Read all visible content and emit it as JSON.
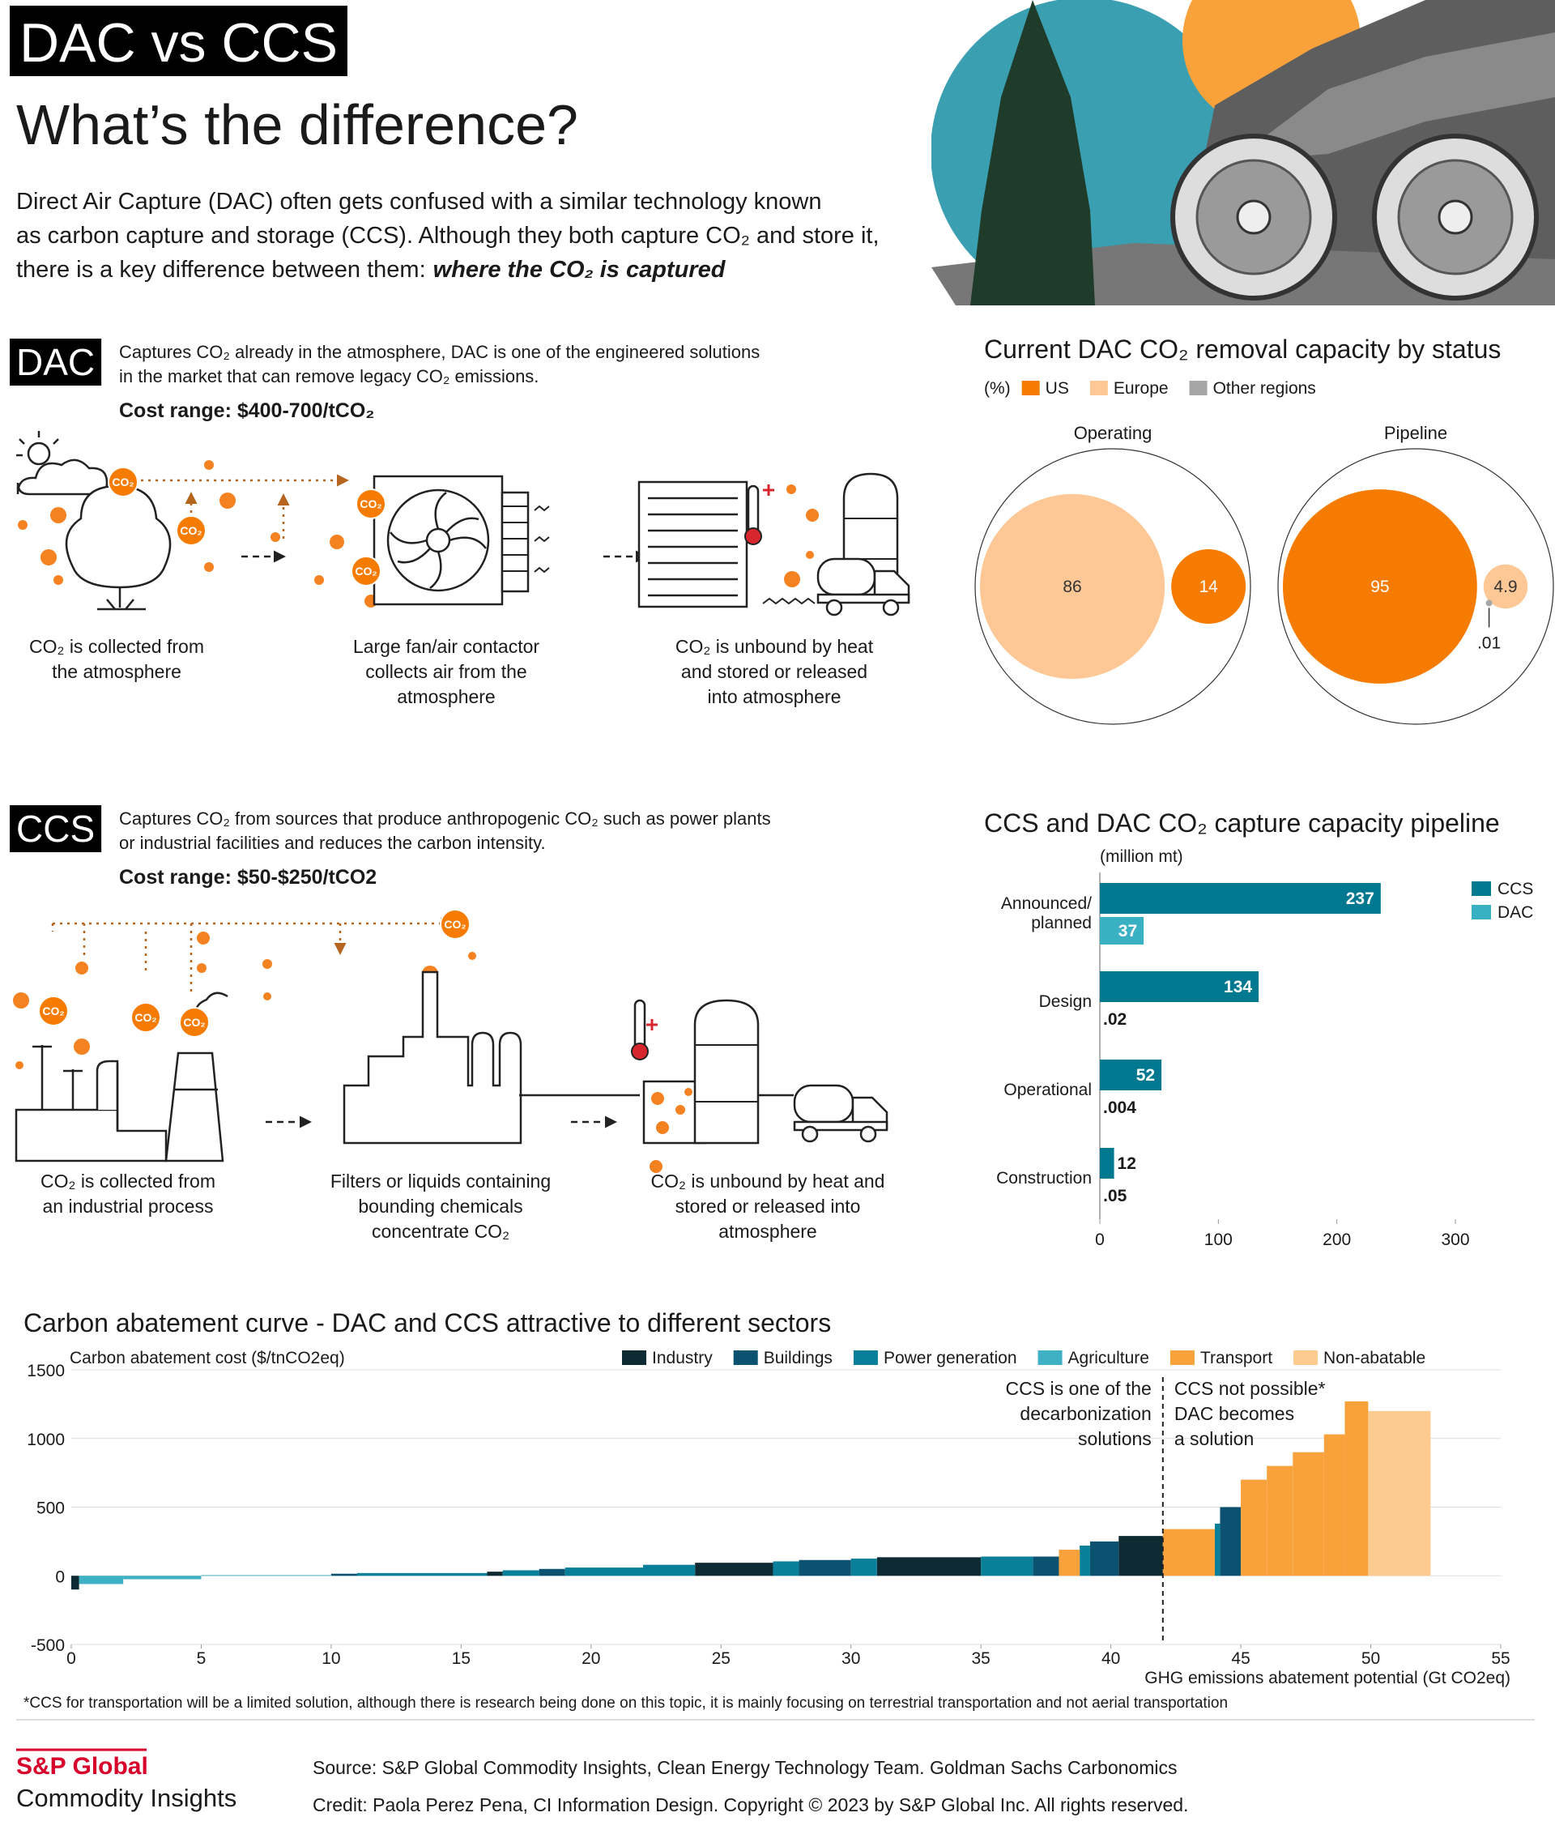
{
  "header": {
    "tag": "DAC vs CCS",
    "title": "What’s the difference?",
    "intro": [
      "Direct Air Capture (DAC) often gets confused with a similar technology known",
      "as carbon capture and storage (CCS). Although they both capture CO₂ and store it,",
      "there is a key difference between them:"
    ],
    "emphasis": "where the CO₂ is captured"
  },
  "badge": "CO₂",
  "dac": {
    "label": "DAC",
    "description": [
      "Captures CO₂ already in the atmosphere, DAC is one of the engineered solutions",
      "in the market that can remove legacy CO₂ emissions."
    ],
    "cost": "Cost range: $400-700/tCO₂",
    "steps": [
      [
        "CO₂ is collected from",
        "the atmosphere"
      ],
      [
        "Large fan/air contactor",
        "collects air from the",
        "atmosphere"
      ],
      [
        "CO₂ is unbound by heat",
        "and stored or released",
        "into atmosphere"
      ]
    ]
  },
  "ccs": {
    "label": "CCS",
    "description": [
      "Captures CO₂ from sources that produce anthropogenic CO₂ such as power plants",
      "or industrial facilities and reduces the carbon intensity."
    ],
    "cost": "Cost range: $50-$250/tCO2",
    "steps": [
      [
        "CO₂ is collected from",
        "an industrial process"
      ],
      [
        "Filters or liquids containing",
        "bounding chemicals",
        "concentrate CO₂"
      ],
      [
        "CO₂ is unbound by heat and",
        "stored or released into",
        "atmosphere"
      ]
    ]
  },
  "chart_data": [
    {
      "type": "bubble",
      "title": "Current DAC CO₂ removal capacity by status",
      "unit": "(%)",
      "categories": [
        "Operating",
        "Pipeline"
      ],
      "series": [
        {
          "name": "US",
          "color": "#f57c00",
          "values": [
            14,
            95
          ]
        },
        {
          "name": "Europe",
          "color": "#fdc896",
          "values": [
            86,
            4.9
          ]
        },
        {
          "name": "Other regions",
          "color": "#a6a6a6",
          "values": [
            null,
            0.01
          ],
          "value_labels": [
            null,
            ".01"
          ]
        }
      ]
    },
    {
      "type": "bar",
      "orientation": "horizontal",
      "title": "CCS and DAC CO₂ capture capacity pipeline",
      "unit": "(million mt)",
      "categories": [
        "Announced/ planned",
        "Design",
        "Operational",
        "Construction"
      ],
      "series": [
        {
          "name": "CCS",
          "color": "#00788f",
          "values": [
            237,
            134,
            52,
            12
          ]
        },
        {
          "name": "DAC",
          "color": "#3ab0c3",
          "values": [
            37,
            0.02,
            0.004,
            0.05
          ],
          "value_labels": [
            "37",
            ".02",
            ".004",
            ".05"
          ]
        }
      ],
      "xlim": [
        0,
        300
      ],
      "xticks": [
        0,
        100,
        200,
        300
      ]
    },
    {
      "type": "macc",
      "title": "Carbon abatement curve - DAC and CCS attractive to different sectors",
      "y_label": "Carbon abatement cost ($/tnCO2eq)",
      "x_label": "GHG emissions abatement potential (Gt CO2eq)",
      "xlim": [
        0,
        55
      ],
      "xticks": [
        0,
        5,
        10,
        15,
        20,
        25,
        30,
        35,
        40,
        45,
        50,
        55
      ],
      "ylim": [
        -500,
        1500
      ],
      "yticks": [
        -500,
        0,
        500,
        1000,
        1500
      ],
      "grid": true,
      "divider_x": 42,
      "annotations": [
        {
          "side": "left",
          "lines": [
            "CCS is one of the",
            "decarbonization",
            "solutions"
          ]
        },
        {
          "side": "right",
          "lines": [
            "CCS not possible*",
            "DAC becomes",
            "a solution"
          ]
        }
      ],
      "series": [
        {
          "name": "Industry",
          "color": "#0e2a33",
          "x_start": [
            0,
            16,
            24,
            31,
            40.3
          ],
          "x_end": [
            0.3,
            16.6,
            27,
            35,
            42
          ],
          "values": [
            -100,
            30,
            95,
            135,
            290
          ]
        },
        {
          "name": "Buildings",
          "color": "#0b5270",
          "x_start": [
            10,
            18,
            28,
            37,
            39.2,
            44.2
          ],
          "x_end": [
            11,
            19,
            30,
            38,
            40.3,
            45
          ],
          "values": [
            15,
            50,
            115,
            140,
            250,
            500
          ]
        },
        {
          "name": "Power generation",
          "color": "#0a7f99",
          "x_start": [
            11,
            16.6,
            19,
            22,
            27,
            30,
            35,
            38.8,
            44
          ],
          "x_end": [
            16,
            18,
            22,
            24,
            28,
            31,
            37,
            39.2,
            44.2
          ],
          "values": [
            20,
            40,
            60,
            80,
            105,
            125,
            140,
            220,
            380
          ]
        },
        {
          "name": "Agriculture",
          "color": "#3fb1c4",
          "x_start": [
            0.3,
            2,
            5
          ],
          "x_end": [
            2,
            5,
            10
          ],
          "values": [
            -60,
            -25,
            5
          ]
        },
        {
          "name": "Transport",
          "color": "#f9a23b",
          "x_start": [
            38,
            42,
            45,
            46,
            47,
            48.2,
            49
          ],
          "x_end": [
            38.8,
            44,
            46,
            47,
            48.2,
            49,
            49.9
          ],
          "values": [
            190,
            340,
            700,
            800,
            900,
            1030,
            1270
          ]
        },
        {
          "name": "Non-abatable",
          "color": "#fdca90",
          "x_start": [
            49.9
          ],
          "x_end": [
            52.3
          ],
          "values": [
            1200
          ]
        }
      ]
    }
  ],
  "footnote": "*CCS for transportation will be a limited solution, although there is research being done on this topic, it is mainly focusing on terrestrial transportation and not aerial transportation",
  "footer": {
    "brand": "S&P Global",
    "brand_sub": "Commodity Insights",
    "source": "Source: S&P Global Commodity Insights, Clean Energy Technology Team. Goldman Sachs Carbonomics",
    "credit": "Credit: Paola Perez Pena, CI Information Design.  Copyright © 2023 by S&P Global Inc. All rights reserved."
  }
}
